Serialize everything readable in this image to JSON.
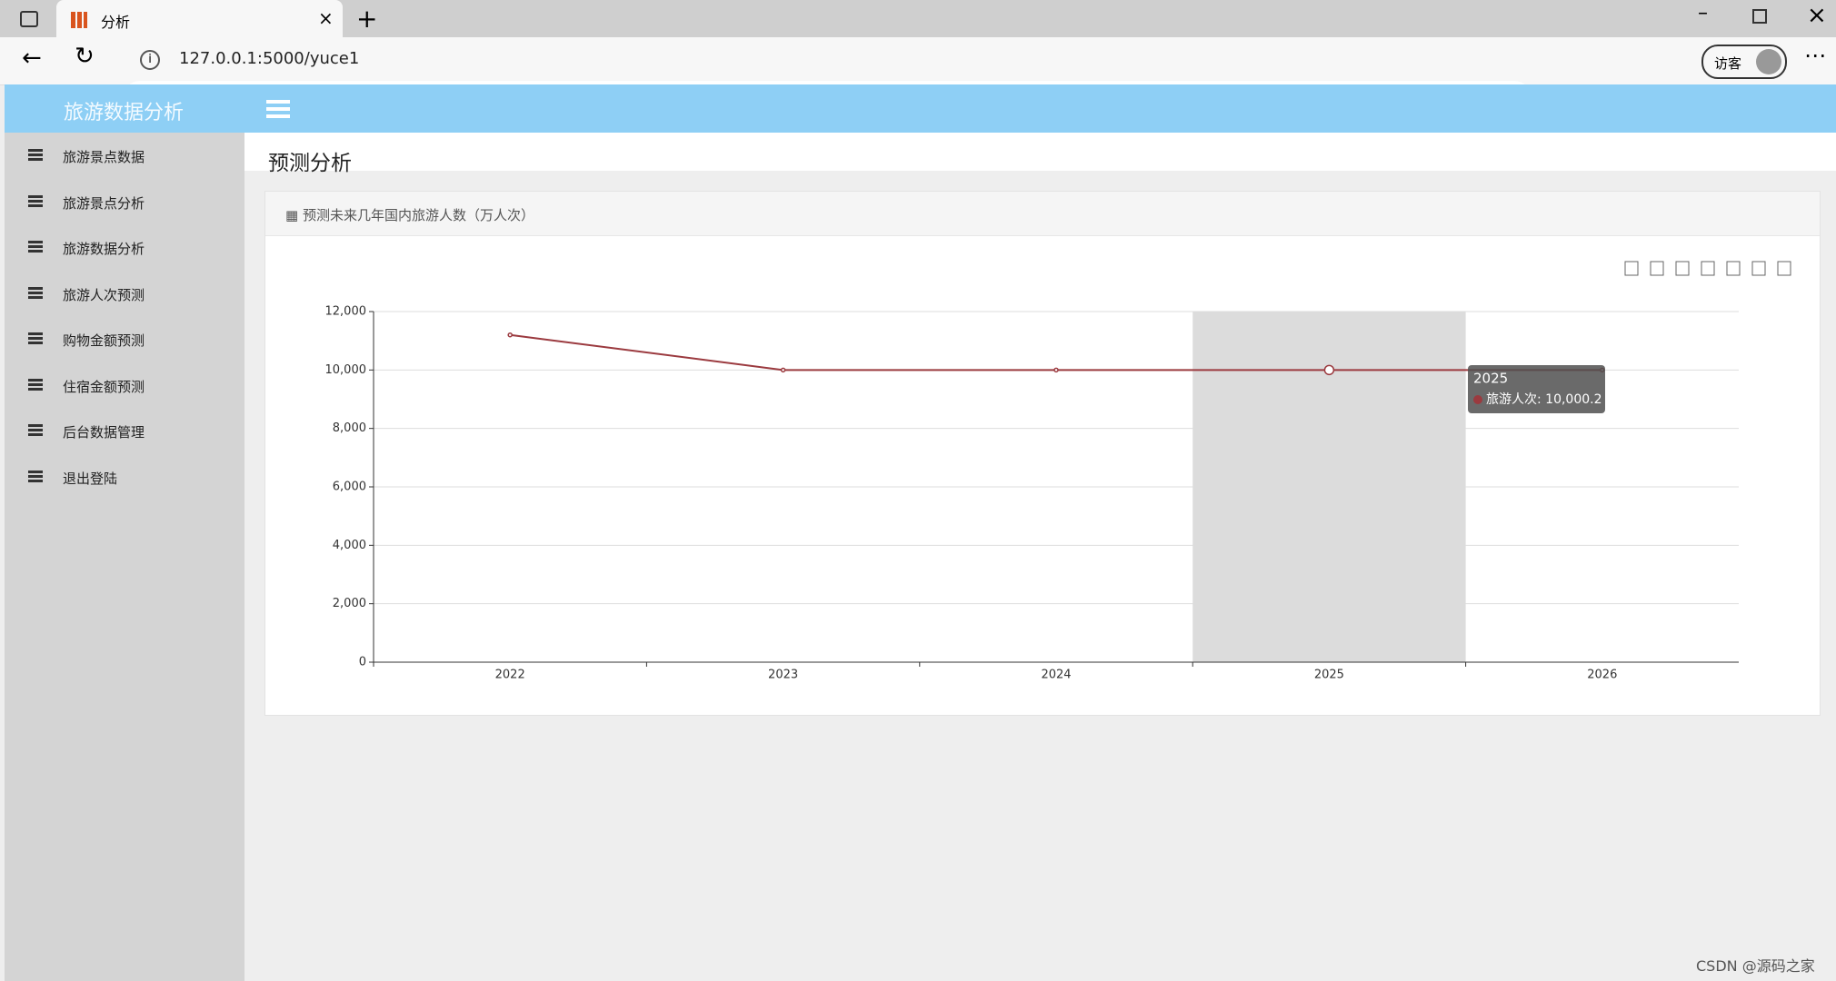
{
  "browser": {
    "tab_title": "分析",
    "url": "127.0.0.1:5000/yuce1",
    "profile": "访客"
  },
  "app": {
    "brand": "旅游数据分析",
    "menu": [
      "旅游景点数据",
      "旅游景点分析",
      "旅游数据分析",
      "旅游人次预测",
      "购物金额预测",
      "住宿金额预测",
      "后台数据管理",
      "退出登陆"
    ],
    "page_title": "预测分析",
    "panel_title": "预测未来几年国内旅游人数（万人次）"
  },
  "chart_data": {
    "type": "line",
    "categories": [
      "2022",
      "2023",
      "2024",
      "2025",
      "2026"
    ],
    "series": [
      {
        "name": "旅游人次",
        "color": "#9b3a3f",
        "values": [
          11200,
          10000,
          10000,
          10000.2,
          10000
        ]
      }
    ],
    "ylim": [
      0,
      12000
    ],
    "yticks": [
      0,
      {
        "value": 2000,
        "label": "2,000"
      },
      {
        "value": 4000,
        "label": "4,000"
      },
      {
        "value": 6000,
        "label": "6,000"
      },
      {
        "value": 8000,
        "label": "8,000"
      },
      {
        "value": 10000,
        "label": "10,000"
      },
      {
        "value": 12000,
        "label": "12,000"
      }
    ],
    "grid": true,
    "tooltip": {
      "title": "2025",
      "text": "旅游人次: 10,000.2"
    }
  },
  "watermark": "CSDN @源码之家"
}
